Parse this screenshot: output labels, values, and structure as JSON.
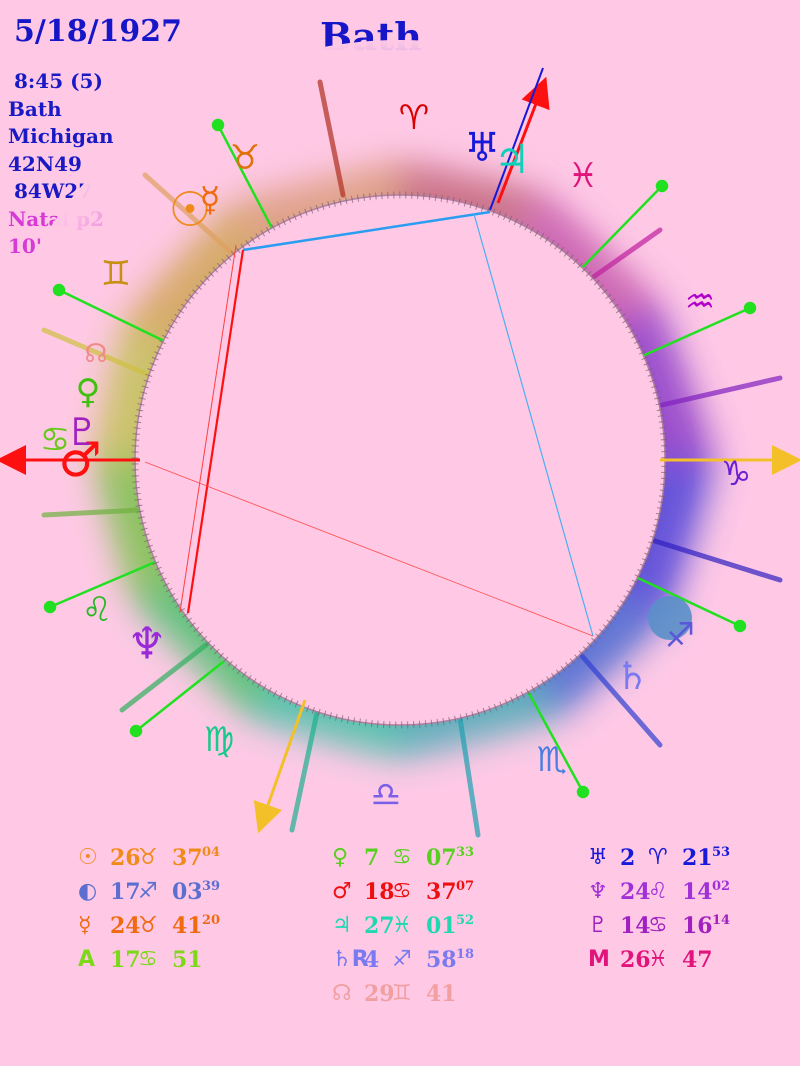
{
  "header": {
    "date": "5/18/1927",
    "place_title": "Bath",
    "time": "8:45 (5)",
    "city": "Bath",
    "state": "Michigan",
    "lat": "42N49",
    "lon": "84W27",
    "chart_type_a": "Natal",
    "chart_type_b": "p2",
    "orb": "10'"
  },
  "colors": {
    "background": "#ffc9e6",
    "header_text": "#1616c8",
    "natal_text": "#d63bd6",
    "aspect_line": "#2196f3"
  },
  "signs": [
    {
      "name": "aries",
      "glyph": "♈",
      "color": "#d90000"
    },
    {
      "name": "pisces",
      "glyph": "♓",
      "color": "#e0147a"
    },
    {
      "name": "aquarius",
      "glyph": "♒",
      "color": "#b000c8"
    },
    {
      "name": "capricorn",
      "glyph": "♑",
      "color": "#6a1fd1"
    },
    {
      "name": "sagittarius",
      "glyph": "♐",
      "color": "#5b57d9"
    },
    {
      "name": "scorpio",
      "glyph": "♏",
      "color": "#4a7fe0"
    },
    {
      "name": "libra",
      "glyph": "♎",
      "color": "#7a60e8"
    },
    {
      "name": "virgo",
      "glyph": "♍",
      "color": "#17c98a"
    },
    {
      "name": "leo",
      "glyph": "♌",
      "color": "#2ab82a"
    },
    {
      "name": "cancer",
      "glyph": "♋",
      "color": "#66c81a"
    },
    {
      "name": "gemini",
      "glyph": "♊",
      "color": "#c89012"
    },
    {
      "name": "taurus",
      "glyph": "♉",
      "color": "#e0700a"
    }
  ],
  "chart_planets": [
    {
      "name": "uranus",
      "glyph": "♅",
      "color": "#1818d8"
    },
    {
      "name": "jupiter",
      "glyph": "♃",
      "color": "#10d0b8"
    },
    {
      "name": "sun",
      "glyph": "☉",
      "color": "#f08a1a"
    },
    {
      "name": "mercury",
      "glyph": "☿",
      "color": "#f06a10"
    },
    {
      "name": "mars",
      "glyph": "♂",
      "color": "#ff1010"
    },
    {
      "name": "venus",
      "glyph": "♀",
      "color": "#40c010"
    },
    {
      "name": "pluto",
      "glyph": "♇",
      "color": "#a020c0"
    },
    {
      "name": "node",
      "glyph": "☊",
      "color": "#f08a8a"
    },
    {
      "name": "neptune",
      "glyph": "♆",
      "color": "#9a2ad8"
    },
    {
      "name": "saturn",
      "glyph": "♄",
      "color": "#7a7af0"
    },
    {
      "name": "chiron",
      "glyph": "⚷",
      "color": "#a020c0"
    }
  ],
  "positions": {
    "col1": [
      {
        "glyph": "☉",
        "deg": "26",
        "sign": "♉",
        "min": "37",
        "sec": "04",
        "color": "#f08a1a"
      },
      {
        "glyph": "◐",
        "deg": "17",
        "sign": "♐",
        "min": "03",
        "sec": "39",
        "color": "#5a6fd0"
      },
      {
        "glyph": "☿",
        "deg": "24",
        "sign": "♉",
        "min": "41",
        "sec": "20",
        "color": "#f06a10"
      },
      {
        "glyph": "A",
        "deg": "17",
        "sign": "♋",
        "min": "51",
        "sec": "",
        "color": "#7ed81a"
      }
    ],
    "col2": [
      {
        "glyph": "♀",
        "deg": "7",
        "sign": "♋",
        "min": "07",
        "sec": "33",
        "color": "#58d020"
      },
      {
        "glyph": "♂",
        "deg": "18",
        "sign": "♋",
        "min": "37",
        "sec": "07",
        "color": "#ee1010"
      },
      {
        "glyph": "♃",
        "deg": "27",
        "sign": "♓",
        "min": "01",
        "sec": "52",
        "color": "#20d8b0"
      },
      {
        "glyph": "♄R",
        "deg": "4",
        "sign": "♐",
        "min": "58",
        "sec": "18",
        "color": "#7a7af0"
      },
      {
        "glyph": "☊",
        "deg": "29",
        "sign": "♊",
        "min": "41",
        "sec": "",
        "color": "#f0a0a0"
      }
    ],
    "col3": [
      {
        "glyph": "♅",
        "deg": "2",
        "sign": "♈",
        "min": "21",
        "sec": "53",
        "color": "#1818d8"
      },
      {
        "glyph": "♆",
        "deg": "24",
        "sign": "♌",
        "min": "14",
        "sec": "02",
        "color": "#a030d8"
      },
      {
        "glyph": "♇",
        "deg": "14",
        "sign": "♋",
        "min": "16",
        "sec": "14",
        "color": "#a020c0"
      },
      {
        "glyph": "M",
        "deg": "26",
        "sign": "♓",
        "min": "47",
        "sec": "",
        "color": "#e0147a"
      }
    ]
  }
}
